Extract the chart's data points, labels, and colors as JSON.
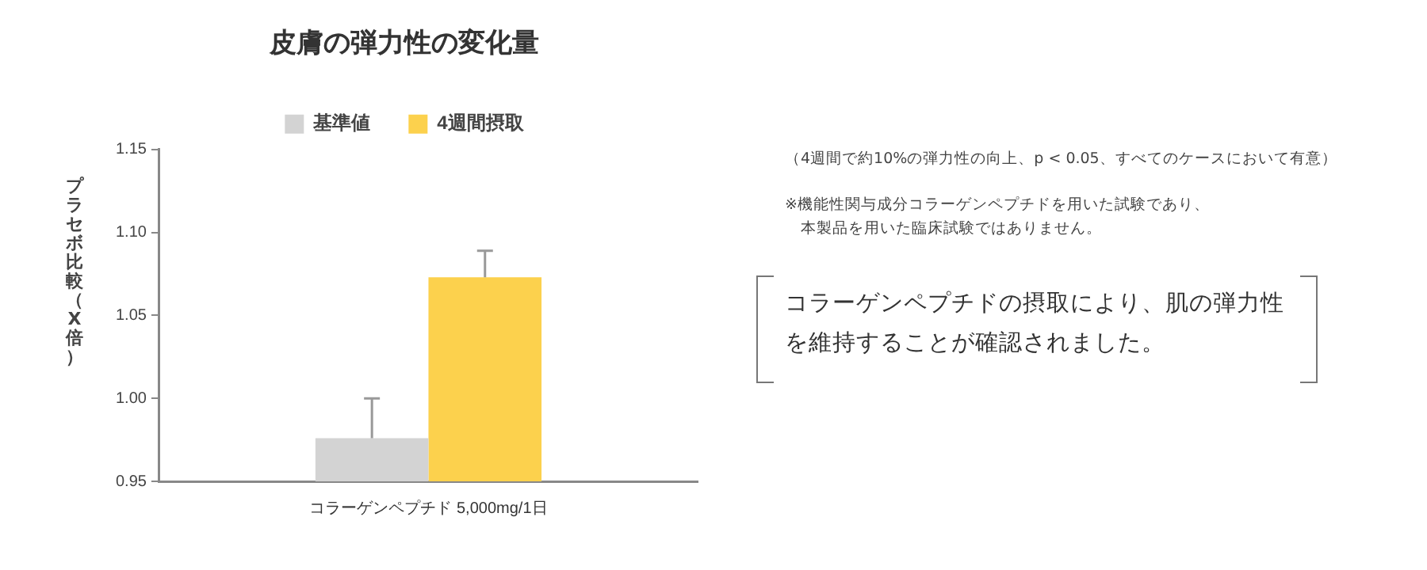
{
  "chart_data": {
    "type": "bar",
    "title": "皮膚の弾力性の変化量",
    "ylabel": "プラセボ比較（X倍）",
    "categories": [
      "コラーゲンペプチド 5,000mg/1日"
    ],
    "series": [
      {
        "name": "基準値",
        "color": "#d3d3d3",
        "values": [
          0.976
        ],
        "errors": [
          [
            0.976,
            1.0
          ]
        ]
      },
      {
        "name": "4週間摂取",
        "color": "#fcd14d",
        "values": [
          1.073
        ],
        "errors": [
          [
            1.073,
            1.089
          ]
        ]
      }
    ],
    "ylim": [
      0.95,
      1.15
    ],
    "yticks": [
      0.95,
      {
        "value": 1.0,
        "label": "1.00"
      },
      1.05,
      {
        "value": 1.1,
        "label": "1.10"
      },
      1.15
    ],
    "grid": false,
    "legend": "top",
    "annotations": [
      "（4週間で約10%の弾力性の向上、p < 0.05、すべてのケースにおいて有意）",
      "※機能性関与成分コラーゲンペプチドを用いた試験であり、本製品を用いた臨床試験ではありません。",
      "コラーゲンペプチドの摂取により、肌の弾力性を維持することが確認されました。"
    ]
  }
}
